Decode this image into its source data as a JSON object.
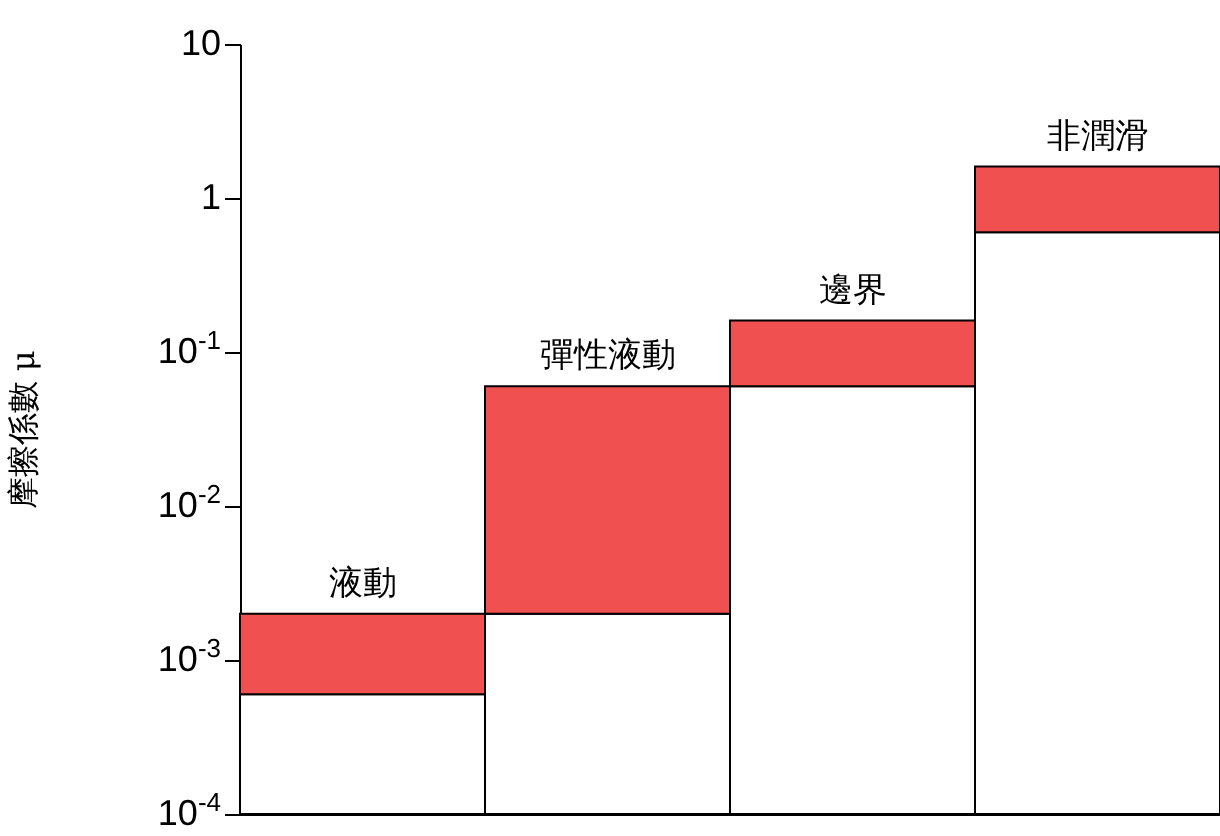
{
  "chart_data": {
    "type": "bar",
    "ylabel": "摩擦係數 μ",
    "categories": [
      "液動",
      "彈性液動",
      "邊界",
      "非潤滑"
    ],
    "stacked": true,
    "series": [
      {
        "color": "#ffffff",
        "values": [
          0.0006,
          0.002,
          0.06,
          0.6
        ]
      },
      {
        "color": "#f05050",
        "values": [
          0.0014,
          0.058,
          0.1,
          1.0
        ]
      }
    ],
    "log": true,
    "ylim": [
      0.0001,
      10
    ],
    "yticks": [
      {
        "value": 0.0001,
        "label": "10$^{-4}$"
      },
      {
        "value": 0.001,
        "label": "10$^{-3}$"
      },
      {
        "value": 0.01,
        "label": "10$^{-2}$"
      },
      {
        "value": 0.1,
        "label": "10$^{-1}$"
      },
      1,
      10
    ],
    "tick_labels": "y",
    "grid": false
  }
}
